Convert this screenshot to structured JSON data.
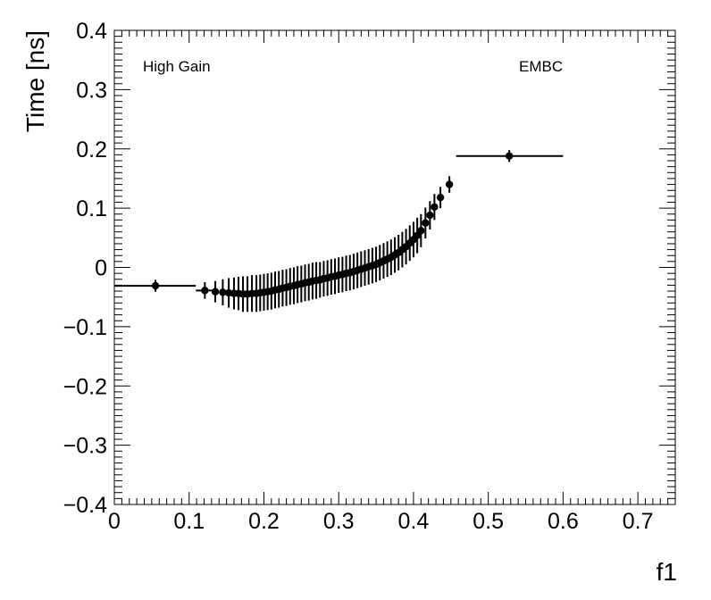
{
  "chart_data": {
    "type": "scatter",
    "xlabel": "f1",
    "ylabel": "Time [ns]",
    "xlim": [
      0,
      0.75
    ],
    "ylim": [
      -0.4,
      0.4
    ],
    "x_ticks": [
      0,
      0.1,
      0.2,
      0.3,
      0.4,
      0.5,
      0.6,
      0.7
    ],
    "x_tick_labels": [
      "0",
      "0.1",
      "0.2",
      "0.3",
      "0.4",
      "0.5",
      "0.6",
      "0.7"
    ],
    "y_ticks": [
      -0.4,
      -0.3,
      -0.2,
      -0.1,
      0,
      0.1,
      0.2,
      0.3,
      0.4
    ],
    "y_tick_labels": [
      "−0.4",
      "−0.3",
      "−0.2",
      "−0.1",
      "0",
      "0.1",
      "0.2",
      "0.3",
      "0.4"
    ],
    "annotations": [
      "High Gain",
      "EMBC"
    ],
    "grid": false,
    "points": [
      {
        "x": 0.055,
        "xlo": 0.0,
        "xhi": 0.109,
        "y": -0.031,
        "yerr": 0.01
      },
      {
        "x": 0.121,
        "xlo": 0.109,
        "xhi": 0.131,
        "y": -0.039,
        "yerr": 0.014
      },
      {
        "x": 0.135,
        "xlo": 0.131,
        "xhi": 0.139,
        "y": -0.041,
        "yerr": 0.018
      },
      {
        "x": 0.145,
        "xlo": 0.141,
        "xhi": 0.149,
        "y": -0.042,
        "yerr": 0.022
      },
      {
        "x": 0.153,
        "xlo": 0.15,
        "xhi": 0.157,
        "y": -0.043,
        "yerr": 0.025
      },
      {
        "x": 0.16,
        "xlo": 0.157,
        "xhi": 0.163,
        "y": -0.044,
        "yerr": 0.027
      },
      {
        "x": 0.166,
        "xlo": 0.163,
        "xhi": 0.169,
        "y": -0.044,
        "yerr": 0.028
      },
      {
        "x": 0.172,
        "xlo": 0.169,
        "xhi": 0.175,
        "y": -0.045,
        "yerr": 0.03
      },
      {
        "x": 0.178,
        "xlo": 0.175,
        "xhi": 0.181,
        "y": -0.045,
        "yerr": 0.03
      },
      {
        "x": 0.184,
        "y": -0.044,
        "yerr": 0.031
      },
      {
        "x": 0.19,
        "y": -0.044,
        "yerr": 0.031
      },
      {
        "x": 0.195,
        "y": -0.043,
        "yerr": 0.031
      },
      {
        "x": 0.2,
        "y": -0.042,
        "yerr": 0.031
      },
      {
        "x": 0.205,
        "y": -0.041,
        "yerr": 0.031
      },
      {
        "x": 0.21,
        "y": -0.04,
        "yerr": 0.031
      },
      {
        "x": 0.215,
        "y": -0.038,
        "yerr": 0.031
      },
      {
        "x": 0.22,
        "y": -0.037,
        "yerr": 0.031
      },
      {
        "x": 0.225,
        "y": -0.035,
        "yerr": 0.031
      },
      {
        "x": 0.23,
        "y": -0.034,
        "yerr": 0.031
      },
      {
        "x": 0.235,
        "y": -0.032,
        "yerr": 0.031
      },
      {
        "x": 0.24,
        "y": -0.031,
        "yerr": 0.031
      },
      {
        "x": 0.245,
        "y": -0.029,
        "yerr": 0.031
      },
      {
        "x": 0.25,
        "y": -0.028,
        "yerr": 0.031
      },
      {
        "x": 0.255,
        "y": -0.026,
        "yerr": 0.031
      },
      {
        "x": 0.26,
        "y": -0.025,
        "yerr": 0.031
      },
      {
        "x": 0.265,
        "y": -0.023,
        "yerr": 0.031
      },
      {
        "x": 0.27,
        "y": -0.022,
        "yerr": 0.031
      },
      {
        "x": 0.275,
        "y": -0.021,
        "yerr": 0.03
      },
      {
        "x": 0.28,
        "y": -0.019,
        "yerr": 0.03
      },
      {
        "x": 0.285,
        "y": -0.018,
        "yerr": 0.03
      },
      {
        "x": 0.29,
        "y": -0.016,
        "yerr": 0.03
      },
      {
        "x": 0.295,
        "y": -0.015,
        "yerr": 0.03
      },
      {
        "x": 0.3,
        "y": -0.013,
        "yerr": 0.03
      },
      {
        "x": 0.305,
        "y": -0.012,
        "yerr": 0.03
      },
      {
        "x": 0.31,
        "y": -0.01,
        "yerr": 0.03
      },
      {
        "x": 0.315,
        "y": -0.009,
        "yerr": 0.03
      },
      {
        "x": 0.32,
        "y": -0.007,
        "yerr": 0.03
      },
      {
        "x": 0.325,
        "y": -0.005,
        "yerr": 0.03
      },
      {
        "x": 0.33,
        "y": -0.003,
        "yerr": 0.03
      },
      {
        "x": 0.335,
        "y": -0.001,
        "yerr": 0.03
      },
      {
        "x": 0.34,
        "y": 0.001,
        "yerr": 0.03
      },
      {
        "x": 0.345,
        "y": 0.003,
        "yerr": 0.03
      },
      {
        "x": 0.35,
        "y": 0.005,
        "yerr": 0.03
      },
      {
        "x": 0.355,
        "y": 0.008,
        "yerr": 0.03
      },
      {
        "x": 0.36,
        "y": 0.011,
        "yerr": 0.03
      },
      {
        "x": 0.365,
        "y": 0.014,
        "yerr": 0.03
      },
      {
        "x": 0.37,
        "y": 0.017,
        "yerr": 0.03
      },
      {
        "x": 0.375,
        "y": 0.021,
        "yerr": 0.03
      },
      {
        "x": 0.38,
        "y": 0.025,
        "yerr": 0.03
      },
      {
        "x": 0.385,
        "y": 0.03,
        "yerr": 0.03
      },
      {
        "x": 0.39,
        "y": 0.035,
        "yerr": 0.03
      },
      {
        "x": 0.395,
        "y": 0.041,
        "yerr": 0.03
      },
      {
        "x": 0.4,
        "y": 0.047,
        "yerr": 0.03
      },
      {
        "x": 0.405,
        "y": 0.054,
        "yerr": 0.03
      },
      {
        "x": 0.41,
        "y": 0.062,
        "yerr": 0.028
      },
      {
        "x": 0.416,
        "y": 0.075,
        "yerr": 0.026
      },
      {
        "x": 0.422,
        "y": 0.088,
        "yerr": 0.024
      },
      {
        "x": 0.428,
        "y": 0.102,
        "yerr": 0.022
      },
      {
        "x": 0.436,
        "y": 0.118,
        "yerr": 0.018
      },
      {
        "x": 0.448,
        "y": 0.14,
        "yerr": 0.014
      },
      {
        "x": 0.528,
        "xlo": 0.457,
        "xhi": 0.6,
        "y": 0.188,
        "yerr": 0.01
      }
    ]
  }
}
